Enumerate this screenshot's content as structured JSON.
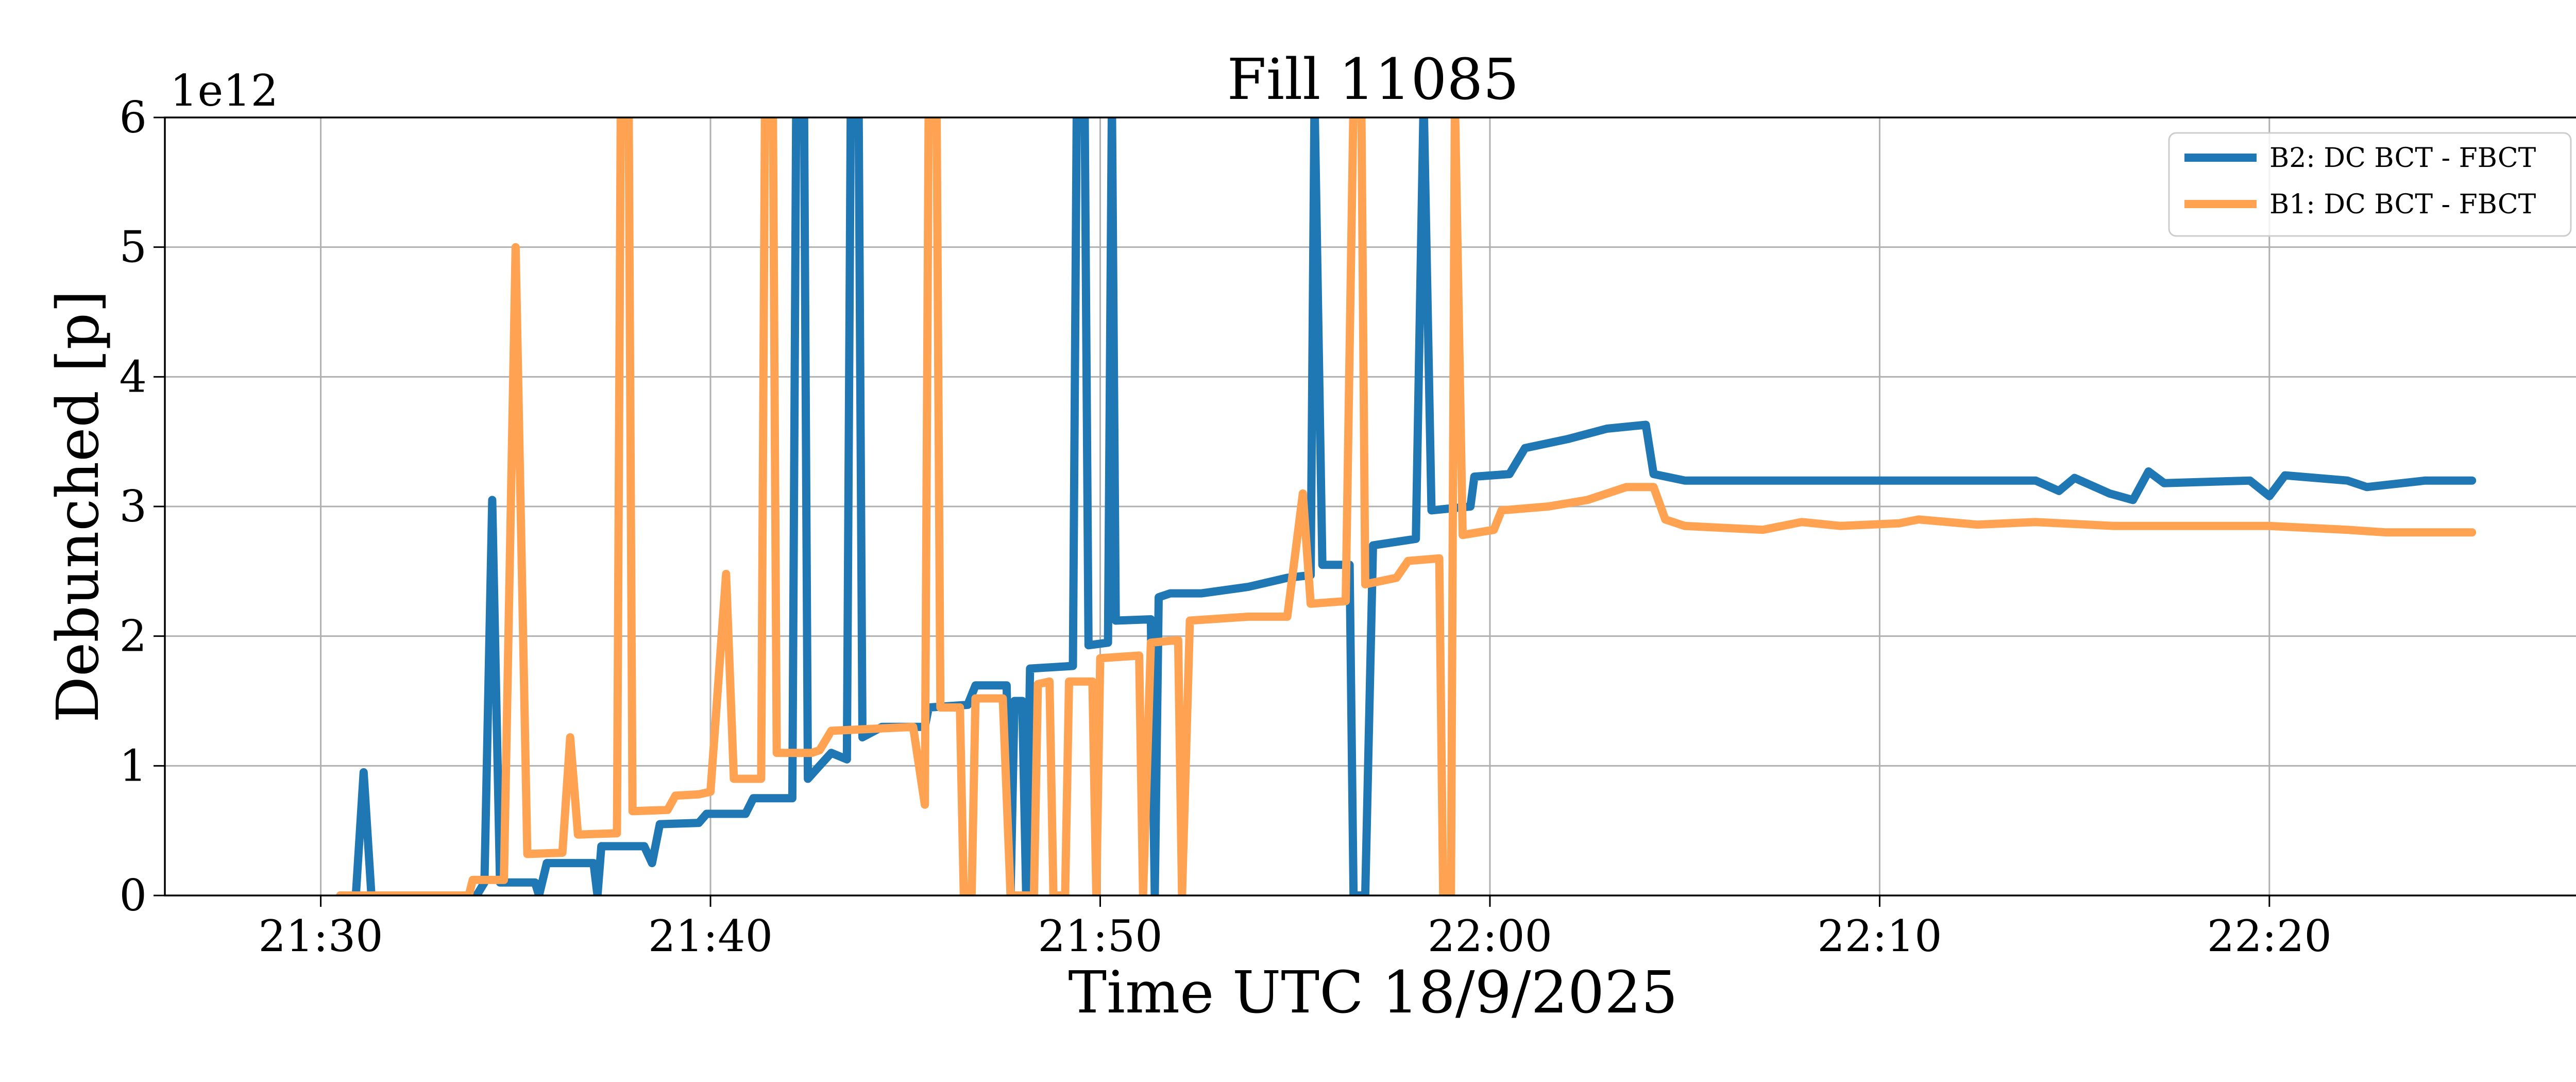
{
  "chart_data": {
    "type": "line",
    "title": "Fill 11085",
    "xlabel": "Time UTC 18/9/2025",
    "ylabel": "Debunched [p]",
    "y_offset_label": "1e12",
    "x_range_minutes": [
      "21:26",
      "22:28"
    ],
    "x_ticks": [
      "21:30",
      "21:40",
      "21:50",
      "22:00",
      "22:10",
      "22:20"
    ],
    "y_ticks": [
      "0",
      "1",
      "2",
      "3",
      "4",
      "5",
      "6"
    ],
    "ylim": [
      0,
      6
    ],
    "grid": true,
    "legend_placement": "top-right",
    "series": [
      {
        "name": "B2: DC BCT - FBCT",
        "color": "#1f77b4",
        "points": [
          [
            "21:30.5",
            0.0
          ],
          [
            "21:30.9",
            0.0
          ],
          [
            "21:31.1",
            0.95
          ],
          [
            "21:31.3",
            0.0
          ],
          [
            "21:34.0",
            0.0
          ],
          [
            "21:34.2",
            0.1
          ],
          [
            "21:34.4",
            3.05
          ],
          [
            "21:34.6",
            0.1
          ],
          [
            "21:35.2",
            0.1
          ],
          [
            "21:35.5",
            0.1
          ],
          [
            "21:35.6",
            0.0
          ],
          [
            "21:35.8",
            0.25
          ],
          [
            "21:37.0",
            0.25
          ],
          [
            "21:37.1",
            0.0
          ],
          [
            "21:37.2",
            0.38
          ],
          [
            "21:38.3",
            0.38
          ],
          [
            "21:38.5",
            0.25
          ],
          [
            "21:38.7",
            0.55
          ],
          [
            "21:39.7",
            0.56
          ],
          [
            "21:39.9",
            0.63
          ],
          [
            "21:40.9",
            0.63
          ],
          [
            "21:41.1",
            0.75
          ],
          [
            "21:42.1",
            0.75
          ],
          [
            "21:42.2",
            6.2
          ],
          [
            "21:42.4",
            6.2
          ],
          [
            "21:42.5",
            0.9
          ],
          [
            "21:42.8",
            1.0
          ],
          [
            "21:43.1",
            1.1
          ],
          [
            "21:43.5",
            1.05
          ],
          [
            "21:43.6",
            6.2
          ],
          [
            "21:43.8",
            6.2
          ],
          [
            "21:43.9",
            1.22
          ],
          [
            "21:44.4",
            1.3
          ],
          [
            "21:45.5",
            1.3
          ],
          [
            "21:45.6",
            1.45
          ],
          [
            "21:46.6",
            1.47
          ],
          [
            "21:46.8",
            1.62
          ],
          [
            "21:47.6",
            1.62
          ],
          [
            "21:47.7",
            0.0
          ],
          [
            "21:47.8",
            1.5
          ],
          [
            "21:48.0",
            1.5
          ],
          [
            "21:48.1",
            0.0
          ],
          [
            "21:48.2",
            1.75
          ],
          [
            "21:49.3",
            1.77
          ],
          [
            "21:49.4",
            6.2
          ],
          [
            "21:49.6",
            6.2
          ],
          [
            "21:49.7",
            1.93
          ],
          [
            "21:50.2",
            1.95
          ],
          [
            "21:50.3",
            6.2
          ],
          [
            "21:50.4",
            2.12
          ],
          [
            "21:51.3",
            2.13
          ],
          [
            "21:51.4",
            0.0
          ],
          [
            "21:51.5",
            2.3
          ],
          [
            "21:51.8",
            2.33
          ],
          [
            "21:52.6",
            2.33
          ],
          [
            "21:53.8",
            2.38
          ],
          [
            "21:54.8",
            2.45
          ],
          [
            "21:55.4",
            2.47
          ],
          [
            "21:55.5",
            6.2
          ],
          [
            "21:55.7",
            2.55
          ],
          [
            "21:56.4",
            2.55
          ],
          [
            "21:56.5",
            0.0
          ],
          [
            "21:56.8",
            0.0
          ],
          [
            "21:57.0",
            2.7
          ],
          [
            "21:58.1",
            2.75
          ],
          [
            "21:58.3",
            6.2
          ],
          [
            "21:58.5",
            2.97
          ],
          [
            "21:59.5",
            3.0
          ],
          [
            "21:59.6",
            3.23
          ],
          [
            "22:00.5",
            3.25
          ],
          [
            "22:00.9",
            3.45
          ],
          [
            "22:02.0",
            3.52
          ],
          [
            "22:03.0",
            3.6
          ],
          [
            "22:04.0",
            3.63
          ],
          [
            "22:04.2",
            3.25
          ],
          [
            "22:05.0",
            3.2
          ],
          [
            "22:08.0",
            3.2
          ],
          [
            "22:10.0",
            3.2
          ],
          [
            "22:12.0",
            3.2
          ],
          [
            "22:14.0",
            3.2
          ],
          [
            "22:14.6",
            3.12
          ],
          [
            "22:15.0",
            3.22
          ],
          [
            "22:15.9",
            3.1
          ],
          [
            "22:16.5",
            3.05
          ],
          [
            "22:16.9",
            3.27
          ],
          [
            "22:17.3",
            3.18
          ],
          [
            "22:19.5",
            3.2
          ],
          [
            "22:20.0",
            3.08
          ],
          [
            "22:20.4",
            3.24
          ],
          [
            "22:22.0",
            3.2
          ],
          [
            "22:22.5",
            3.15
          ],
          [
            "22:24.0",
            3.2
          ],
          [
            "22:25.2",
            3.2
          ]
        ]
      },
      {
        "name": "B1: DC BCT - FBCT",
        "color": "#ffa352",
        "points": [
          [
            "21:30.5",
            0.0
          ],
          [
            "21:33.8",
            0.0
          ],
          [
            "21:33.9",
            0.12
          ],
          [
            "21:34.7",
            0.12
          ],
          [
            "21:35.0",
            5.0
          ],
          [
            "21:35.3",
            0.32
          ],
          [
            "21:36.2",
            0.33
          ],
          [
            "21:36.4",
            1.22
          ],
          [
            "21:36.6",
            0.47
          ],
          [
            "21:37.6",
            0.48
          ],
          [
            "21:37.7",
            6.2
          ],
          [
            "21:37.9",
            6.2
          ],
          [
            "21:38.0",
            0.65
          ],
          [
            "21:38.9",
            0.66
          ],
          [
            "21:39.1",
            0.77
          ],
          [
            "21:39.7",
            0.78
          ],
          [
            "21:40.0",
            0.8
          ],
          [
            "21:40.4",
            2.48
          ],
          [
            "21:40.6",
            0.9
          ],
          [
            "21:41.3",
            0.9
          ],
          [
            "21:41.4",
            6.2
          ],
          [
            "21:41.6",
            6.2
          ],
          [
            "21:41.7",
            1.1
          ],
          [
            "21:42.6",
            1.1
          ],
          [
            "21:42.8",
            1.12
          ],
          [
            "21:43.1",
            1.27
          ],
          [
            "21:45.2",
            1.3
          ],
          [
            "21:45.5",
            0.7
          ],
          [
            "21:45.6",
            6.2
          ],
          [
            "21:45.8",
            6.2
          ],
          [
            "21:45.9",
            1.45
          ],
          [
            "21:46.4",
            1.45
          ],
          [
            "21:46.5",
            0.0
          ],
          [
            "21:46.7",
            0.0
          ],
          [
            "21:46.8",
            1.52
          ],
          [
            "21:47.5",
            1.52
          ],
          [
            "21:47.7",
            0.0
          ],
          [
            "21:48.3",
            0.0
          ],
          [
            "21:48.4",
            1.63
          ],
          [
            "21:48.7",
            1.65
          ],
          [
            "21:48.8",
            0.0
          ],
          [
            "21:49.1",
            0.0
          ],
          [
            "21:49.2",
            1.65
          ],
          [
            "21:49.8",
            1.65
          ],
          [
            "21:49.9",
            0.0
          ],
          [
            "21:50.0",
            1.83
          ],
          [
            "21:51.0",
            1.85
          ],
          [
            "21:51.1",
            0.0
          ],
          [
            "21:51.3",
            1.95
          ],
          [
            "21:52.0",
            1.97
          ],
          [
            "21:52.1",
            0.0
          ],
          [
            "21:52.3",
            2.12
          ],
          [
            "21:53.8",
            2.15
          ],
          [
            "21:54.8",
            2.15
          ],
          [
            "21:55.2",
            3.1
          ],
          [
            "21:55.4",
            2.25
          ],
          [
            "21:56.3",
            2.27
          ],
          [
            "21:56.5",
            6.2
          ],
          [
            "21:56.7",
            6.2
          ],
          [
            "21:56.8",
            2.4
          ],
          [
            "21:57.6",
            2.45
          ],
          [
            "21:57.9",
            2.58
          ],
          [
            "21:58.7",
            2.6
          ],
          [
            "21:58.8",
            0.0
          ],
          [
            "21:59.0",
            0.0
          ],
          [
            "21:59.1",
            6.2
          ],
          [
            "21:59.3",
            2.78
          ],
          [
            "21:59.7",
            2.8
          ],
          [
            "22:00.1",
            2.82
          ],
          [
            "22:00.3",
            2.97
          ],
          [
            "22:01.5",
            3.0
          ],
          [
            "22:02.5",
            3.05
          ],
          [
            "22:03.5",
            3.15
          ],
          [
            "22:04.2",
            3.15
          ],
          [
            "22:04.5",
            2.9
          ],
          [
            "22:05.0",
            2.85
          ],
          [
            "22:07.0",
            2.82
          ],
          [
            "22:08.0",
            2.88
          ],
          [
            "22:09.0",
            2.85
          ],
          [
            "22:10.5",
            2.87
          ],
          [
            "22:11.0",
            2.9
          ],
          [
            "22:12.5",
            2.86
          ],
          [
            "22:14.0",
            2.88
          ],
          [
            "22:16.0",
            2.85
          ],
          [
            "22:18.0",
            2.85
          ],
          [
            "22:20.0",
            2.85
          ],
          [
            "22:22.0",
            2.82
          ],
          [
            "22:23.0",
            2.8
          ],
          [
            "22:25.2",
            2.8
          ]
        ]
      }
    ]
  }
}
